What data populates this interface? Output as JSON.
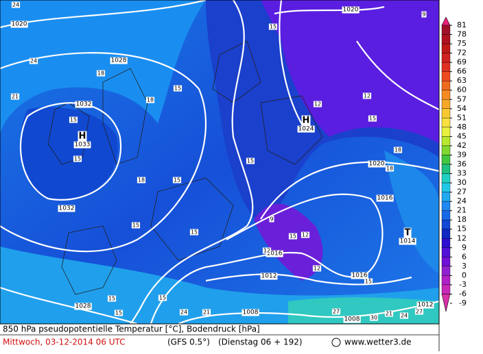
{
  "map": {
    "title": "850 hPa pseudopotentielle Temperatur [°C], Bodendruck [hPa]",
    "valid_time": "Mittwoch, 03-12-2014  06 UTC",
    "model": "(GFS 0.5°)",
    "run": "(Dienstag 06 + 192)",
    "source": "www.wetter3.de",
    "pressure_centers": [
      {
        "symbol": "H",
        "value": 1033
      },
      {
        "symbol": "H",
        "value": 1024
      },
      {
        "symbol": "T",
        "value": 1014
      }
    ],
    "isobar_labels": [
      1020,
      1028,
      1032,
      1032,
      1020,
      1020,
      1016,
      1016,
      1012,
      1016,
      1012,
      1008,
      1008,
      1028
    ],
    "temperature_labels": [
      24,
      24,
      21,
      18,
      18,
      15,
      15,
      15,
      18,
      15,
      15,
      15,
      15,
      12,
      12,
      15,
      18,
      18,
      15,
      9,
      15,
      12,
      12,
      12,
      15,
      15,
      15,
      15,
      24,
      21,
      27,
      30,
      21,
      24,
      27,
      9
    ],
    "colorbar": {
      "ticks": [
        81,
        78,
        75,
        72,
        69,
        66,
        63,
        60,
        57,
        54,
        51,
        48,
        45,
        42,
        39,
        36,
        33,
        30,
        27,
        24,
        21,
        18,
        15,
        12,
        9,
        6,
        3,
        0,
        -3,
        -6,
        -9
      ],
      "colors": [
        "#e8207a",
        "#a0102a",
        "#b01020",
        "#c01818",
        "#d02020",
        "#e03020",
        "#ee4a20",
        "#f06a20",
        "#f58a20",
        "#f8a828",
        "#f8c830",
        "#f8e040",
        "#e8f040",
        "#b8e830",
        "#80d830",
        "#40c840",
        "#20c080",
        "#20d0c0",
        "#20c8e8",
        "#20a8f0",
        "#2088f0",
        "#1868e8",
        "#1048d8",
        "#1028c0",
        "#3010d0",
        "#5010d8",
        "#7010d8",
        "#9020d0",
        "#b020c8",
        "#c828b8",
        "#d830a8"
      ]
    }
  }
}
